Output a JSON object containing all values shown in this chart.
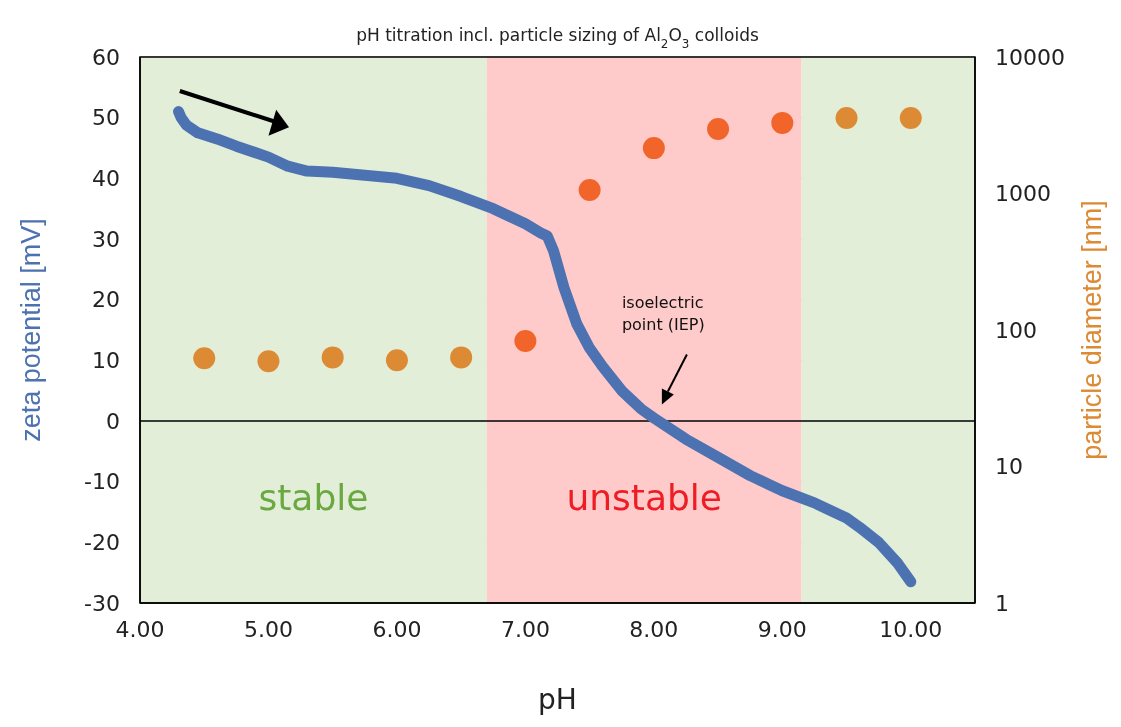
{
  "chart_data": {
    "type": "line",
    "title": "pH titration incl. particle sizing of Al$_{2}$O$_{3}$ colloids",
    "xlabel": "pH",
    "ylabel": "zeta potential [mV]",
    "y2label": "particle diameter [nm]",
    "xlim": [
      4,
      10.5
    ],
    "xticks": [
      {
        "value": 4,
        "label": "4.00"
      },
      {
        "value": 5,
        "label": "5.00"
      },
      {
        "value": 6,
        "label": "6.00"
      },
      {
        "value": 7,
        "label": "7.00"
      },
      {
        "value": 8,
        "label": "8.00"
      },
      {
        "value": 9,
        "label": "9.00"
      },
      {
        "value": 10,
        "label": "10.00"
      }
    ],
    "ylim": [
      -30,
      60
    ],
    "yticks": [
      -30,
      -20,
      -10,
      0,
      10,
      20,
      30,
      40,
      50,
      60
    ],
    "y2lim": [
      1,
      10000
    ],
    "y2ticks": [
      1,
      10,
      100,
      1000,
      10000
    ],
    "log": "y2",
    "grid": "y",
    "series": [
      {
        "color": "#4d72b1",
        "x": [
          4.3,
          4.32,
          4.36,
          4.45,
          4.6,
          4.75,
          5.0,
          5.15,
          5.3,
          5.5,
          5.75,
          6.0,
          6.25,
          6.5,
          6.75,
          7.0,
          7.12,
          7.17,
          7.22,
          7.3,
          7.4,
          7.5,
          7.6,
          7.75,
          7.9,
          8.0,
          8.25,
          8.5,
          8.75,
          8.9,
          9.0,
          9.25,
          9.4,
          9.5,
          9.6,
          9.75,
          9.9,
          10.0
        ],
        "values": [
          51,
          50,
          48.8,
          47.5,
          46.5,
          45.3,
          43.5,
          42,
          41.2,
          41,
          40.5,
          40,
          38.8,
          37,
          35,
          32.5,
          31,
          30.5,
          28,
          22,
          16,
          12,
          9,
          5,
          2,
          0.5,
          -3,
          -6,
          -9,
          -10.5,
          -11.5,
          -13.5,
          -15,
          -16,
          -17.5,
          -20,
          -23.5,
          -26.5
        ]
      },
      {
        "type": "scatter",
        "axis": "y2",
        "x": [
          4.5,
          5.0,
          5.5,
          6.0,
          6.5,
          7.0,
          7.5,
          8.0,
          8.5,
          9.0,
          9.5,
          10.0
        ],
        "values": [
          62,
          59,
          63,
          60,
          63,
          83,
          1060,
          2150,
          2970,
          3290,
          3570,
          3570
        ],
        "colors": [
          "#dd8a35",
          "#dd8a35",
          "#dd8a35",
          "#dd8a35",
          "#dd8a35",
          "#f2652a",
          "#f2652a",
          "#f2652a",
          "#f2652a",
          "#f2652a",
          "#dd8a35",
          "#dd8a35"
        ]
      }
    ],
    "bands": [
      {
        "axis": "x",
        "from": 4,
        "to": 6.7,
        "label": "stable",
        "color": "#e2eed8"
      },
      {
        "axis": "x",
        "from": 6.7,
        "to": 9.15,
        "label": "unstable",
        "color": "#ffcaca"
      },
      {
        "axis": "x",
        "from": 9.15,
        "to": 10.5,
        "color": "#e2eed8"
      }
    ],
    "ref_lines": [
      {
        "axis": "y",
        "value": 0,
        "color": "#000000"
      }
    ],
    "annotations": [
      "isoelectric point (IEP)"
    ]
  }
}
